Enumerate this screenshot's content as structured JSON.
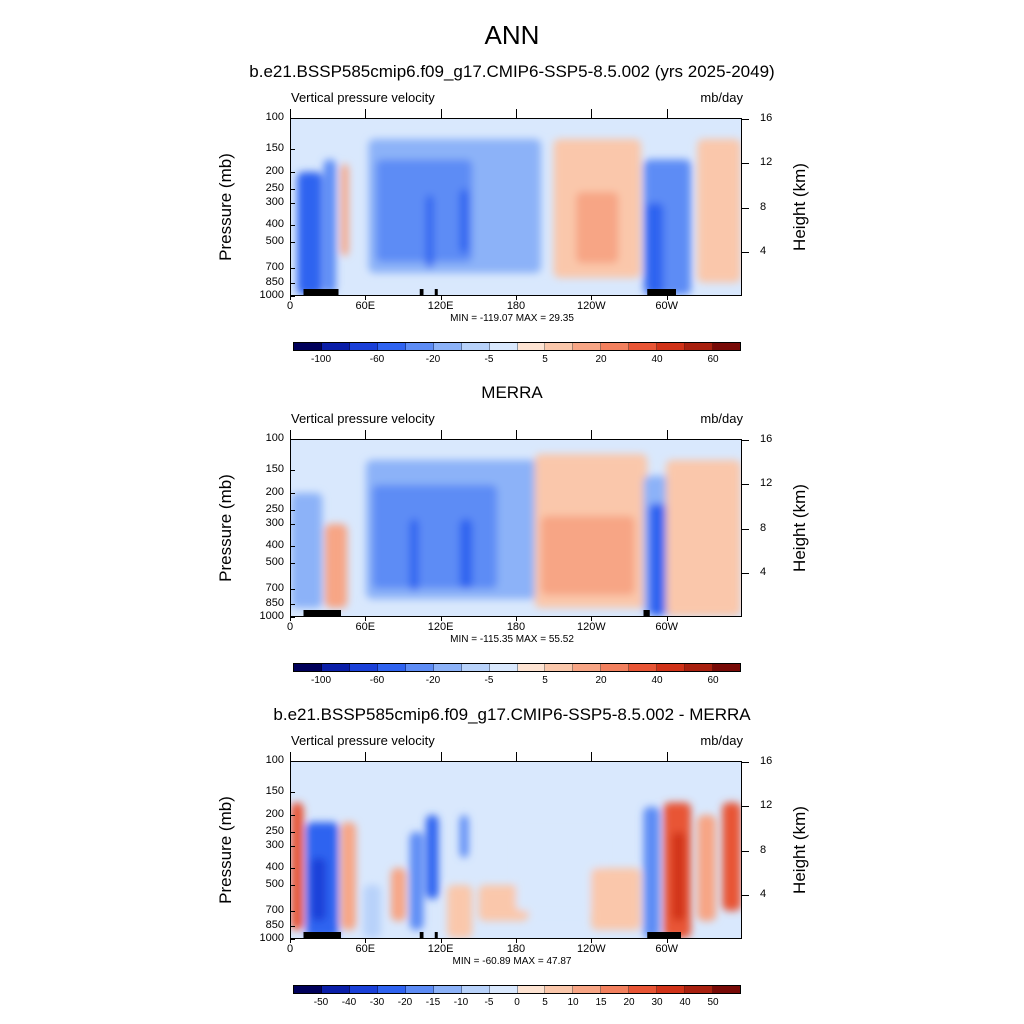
{
  "figure_title": "ANN",
  "chart_data": [
    {
      "type": "heatmap",
      "title": "b.e21.BSSP585cmip6.f09_g17.CMIP6-SSP5-8.5.002 (yrs 2025-2049)",
      "subtitle_left": "Vertical pressure velocity",
      "subtitle_right": "mb/day",
      "ylabel": "Pressure (mb)",
      "ylabel_right": "Height (km)",
      "pressure_ticks": [
        "100",
        "150",
        "200",
        "250",
        "300",
        "400",
        "500",
        "700",
        "850",
        "1000"
      ],
      "height_ticks": [
        "16",
        "12",
        "8",
        "4"
      ],
      "x_ticks": [
        "0",
        "60E",
        "120E",
        "180",
        "120W",
        "60W"
      ],
      "xlim": [
        0,
        360
      ],
      "stats": "MIN = -119.07  MAX =  29.35",
      "colorbar_labels": [
        "-100",
        "-60",
        "-20",
        "-5",
        "5",
        "20",
        "40",
        "60"
      ],
      "field": [
        {
          "x": [
            5,
            25
          ],
          "p": [
            200,
            1000
          ],
          "v": -60
        },
        {
          "x": [
            26,
            36
          ],
          "p": [
            170,
            980
          ],
          "v": -40
        },
        {
          "x": [
            40,
            46
          ],
          "p": [
            180,
            600
          ],
          "v": 10
        },
        {
          "x": [
            62,
            200
          ],
          "p": [
            130,
            750
          ],
          "v": -20
        },
        {
          "x": [
            68,
            145
          ],
          "p": [
            170,
            650
          ],
          "v": -40
        },
        {
          "x": [
            108,
            114
          ],
          "p": [
            270,
            700
          ],
          "v": -60
        },
        {
          "x": [
            135,
            142
          ],
          "p": [
            250,
            580
          ],
          "v": -60
        },
        {
          "x": [
            210,
            280
          ],
          "p": [
            130,
            800
          ],
          "v": 5
        },
        {
          "x": [
            228,
            262
          ],
          "p": [
            260,
            660
          ],
          "v": 10
        },
        {
          "x": [
            282,
            320
          ],
          "p": [
            170,
            1000
          ],
          "v": -40
        },
        {
          "x": [
            284,
            298
          ],
          "p": [
            300,
            1000
          ],
          "v": -60
        },
        {
          "x": [
            325,
            360
          ],
          "p": [
            130,
            850
          ],
          "v": 5
        }
      ],
      "land": [
        [
          10,
          32
        ],
        [
          30,
          38
        ],
        [
          103,
          106
        ],
        [
          115,
          117
        ],
        [
          285,
          308
        ]
      ]
    },
    {
      "type": "heatmap",
      "title": "MERRA",
      "subtitle_left": "Vertical pressure velocity",
      "subtitle_right": "mb/day",
      "ylabel": "Pressure (mb)",
      "ylabel_right": "Height (km)",
      "pressure_ticks": [
        "100",
        "150",
        "200",
        "250",
        "300",
        "400",
        "500",
        "700",
        "850",
        "1000"
      ],
      "height_ticks": [
        "16",
        "12",
        "8",
        "4"
      ],
      "x_ticks": [
        "0",
        "60E",
        "120E",
        "180",
        "120W",
        "60W"
      ],
      "xlim": [
        0,
        360
      ],
      "stats": "MIN = -115.35  MAX =  55.52",
      "colorbar_labels": [
        "-100",
        "-60",
        "-20",
        "-5",
        "5",
        "20",
        "40",
        "60"
      ],
      "field": [
        {
          "x": [
            0,
            25
          ],
          "p": [
            200,
            900
          ],
          "v": -20
        },
        {
          "x": [
            27,
            45
          ],
          "p": [
            300,
            900
          ],
          "v": 10
        },
        {
          "x": [
            60,
            200
          ],
          "p": [
            130,
            800
          ],
          "v": -20
        },
        {
          "x": [
            65,
            165
          ],
          "p": [
            180,
            700
          ],
          "v": -40
        },
        {
          "x": [
            95,
            102
          ],
          "p": [
            280,
            720
          ],
          "v": -60
        },
        {
          "x": [
            135,
            145
          ],
          "p": [
            280,
            700
          ],
          "v": -60
        },
        {
          "x": [
            195,
            285
          ],
          "p": [
            120,
            900
          ],
          "v": 5
        },
        {
          "x": [
            200,
            275
          ],
          "p": [
            270,
            760
          ],
          "v": 10
        },
        {
          "x": [
            282,
            340
          ],
          "p": [
            160,
            1000
          ],
          "v": -20
        },
        {
          "x": [
            286,
            300
          ],
          "p": [
            230,
            1000
          ],
          "v": -60
        },
        {
          "x": [
            300,
            360
          ],
          "p": [
            130,
            1000
          ],
          "v": 5
        }
      ],
      "land": [
        [
          10,
          28
        ],
        [
          28,
          40
        ],
        [
          282,
          287
        ]
      ]
    },
    {
      "type": "heatmap",
      "title": "b.e21.BSSP585cmip6.f09_g17.CMIP6-SSP5-8.5.002 - MERRA",
      "subtitle_left": "Vertical pressure velocity",
      "subtitle_right": "mb/day",
      "ylabel": "Pressure (mb)",
      "ylabel_right": "Height (km)",
      "pressure_ticks": [
        "100",
        "150",
        "200",
        "250",
        "300",
        "400",
        "500",
        "700",
        "850",
        "1000"
      ],
      "height_ticks": [
        "16",
        "12",
        "8",
        "4"
      ],
      "x_ticks": [
        "0",
        "60E",
        "120E",
        "180",
        "120W",
        "60W"
      ],
      "xlim": [
        0,
        360
      ],
      "stats": "MIN = -60.89  MAX =  47.87",
      "colorbar_labels": [
        "-50",
        "-40",
        "-30",
        "-20",
        "-15",
        "-10",
        "-5",
        "0",
        "5",
        "10",
        "15",
        "20",
        "30",
        "40",
        "50"
      ],
      "field": [
        {
          "x": [
            0,
            10
          ],
          "p": [
            170,
            900
          ],
          "v": 20
        },
        {
          "x": [
            12,
            38
          ],
          "p": [
            220,
            1000
          ],
          "v": -30
        },
        {
          "x": [
            16,
            28
          ],
          "p": [
            350,
            800
          ],
          "v": -40
        },
        {
          "x": [
            40,
            52
          ],
          "p": [
            220,
            900
          ],
          "v": 10
        },
        {
          "x": [
            58,
            72
          ],
          "p": [
            500,
            1000
          ],
          "v": -10
        },
        {
          "x": [
            80,
            92
          ],
          "p": [
            400,
            800
          ],
          "v": 10
        },
        {
          "x": [
            95,
            106
          ],
          "p": [
            250,
            900
          ],
          "v": -20
        },
        {
          "x": [
            108,
            118
          ],
          "p": [
            200,
            600
          ],
          "v": -30
        },
        {
          "x": [
            125,
            145
          ],
          "p": [
            500,
            1000
          ],
          "v": 5
        },
        {
          "x": [
            135,
            142
          ],
          "p": [
            200,
            350
          ],
          "v": -20
        },
        {
          "x": [
            150,
            190
          ],
          "p": [
            500,
            800
          ],
          "v": 5
        },
        {
          "x": [
            180,
            250
          ],
          "p": [
            250,
            700
          ],
          "v": -5
        },
        {
          "x": [
            240,
            280
          ],
          "p": [
            400,
            900
          ],
          "v": 5
        },
        {
          "x": [
            282,
            295
          ],
          "p": [
            180,
            1000
          ],
          "v": -20
        },
        {
          "x": [
            298,
            320
          ],
          "p": [
            170,
            1000
          ],
          "v": 20
        },
        {
          "x": [
            305,
            315
          ],
          "p": [
            250,
            800
          ],
          "v": 30
        },
        {
          "x": [
            325,
            340
          ],
          "p": [
            200,
            800
          ],
          "v": 10
        },
        {
          "x": [
            345,
            360
          ],
          "p": [
            170,
            700
          ],
          "v": 20
        }
      ],
      "land": [
        [
          10,
          28
        ],
        [
          28,
          40
        ],
        [
          103,
          106
        ],
        [
          115,
          117
        ],
        [
          285,
          312
        ]
      ]
    }
  ]
}
